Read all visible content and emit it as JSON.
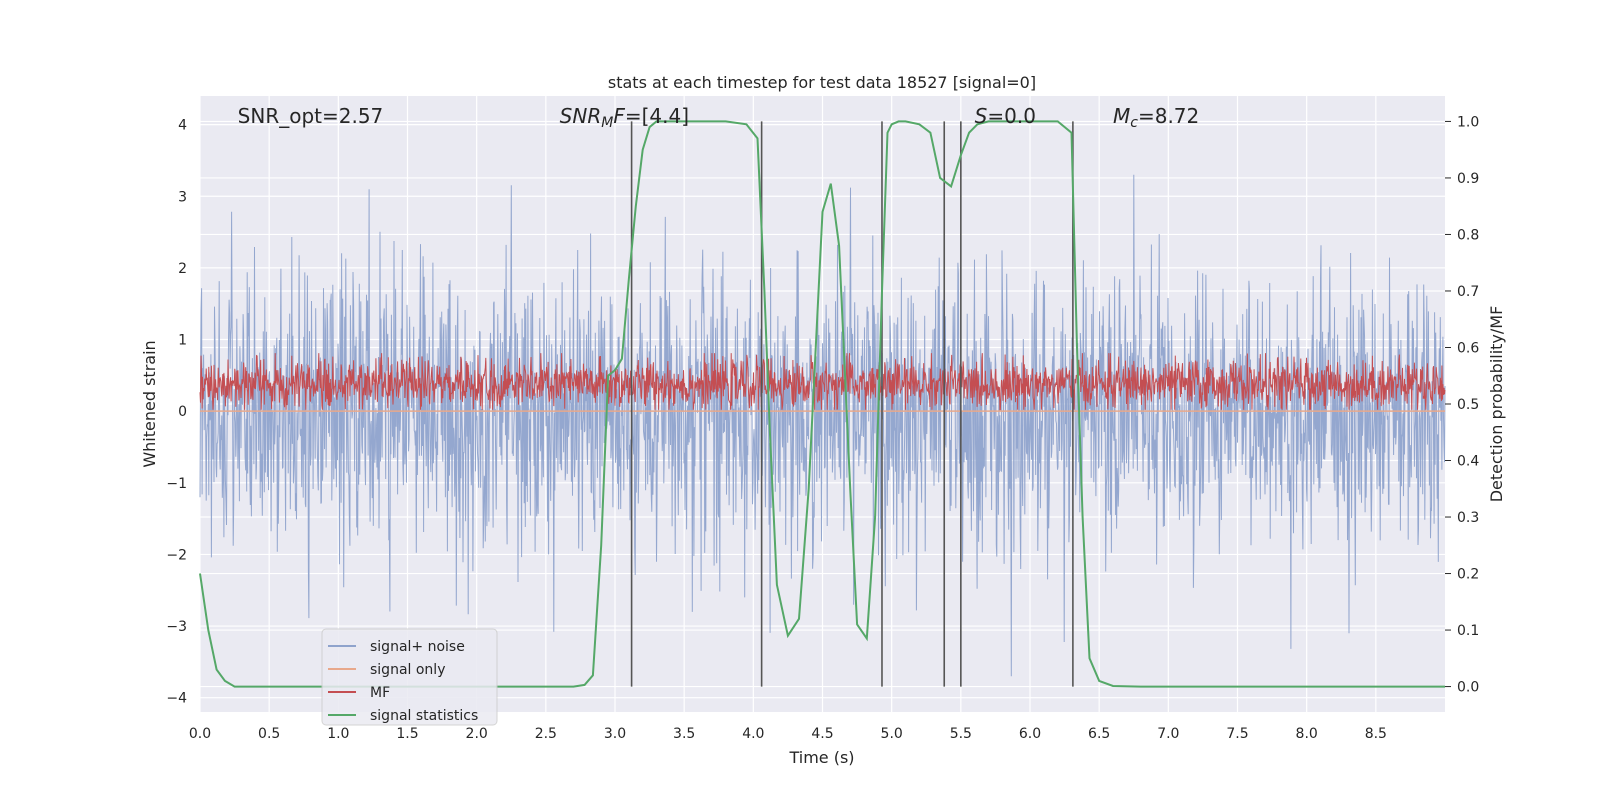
{
  "chart_data": {
    "type": "line",
    "title": "stats at each timestep for test data 18527 [signal=0]",
    "xlabel": "Time (s)",
    "ylabel": "Whitened strain",
    "y2label": "Detection probability/MF",
    "xlim": [
      0,
      9.0
    ],
    "ylim": [
      -4.2,
      4.4
    ],
    "y2lim": [
      -0.045,
      1.045
    ],
    "xticks": [
      "0.0",
      "0.5",
      "1.0",
      "1.5",
      "2.0",
      "2.5",
      "3.0",
      "3.5",
      "4.0",
      "4.5",
      "5.0",
      "5.5",
      "6.0",
      "6.5",
      "7.0",
      "7.5",
      "8.0",
      "8.5"
    ],
    "yticks": [
      "4",
      "3",
      "2",
      "1",
      "0",
      "−1",
      "−2",
      "−3",
      "−4"
    ],
    "y2ticks": [
      "1.0",
      "0.9",
      "0.8",
      "0.7",
      "0.6",
      "0.5",
      "0.4",
      "0.3",
      "0.2",
      "0.1",
      "0.0"
    ],
    "grid": true,
    "legend_position": "lower-left",
    "annotations": [
      {
        "text": "SNR_opt=2.57",
        "x": 0.2
      },
      {
        "text": "SNR_MF=[4.4]",
        "x": 2.6
      },
      {
        "text": "S=0.0",
        "x": 5.6
      },
      {
        "text": "M_c=8.72",
        "x": 6.6
      }
    ],
    "vertical_markers": [
      3.12,
      4.06,
      4.93,
      5.38,
      5.5,
      6.31
    ],
    "series": [
      {
        "name": "signal+ noise",
        "color": "#8fa3cc",
        "axis": "left",
        "description": "whitened noise, roughly Gaussian with std ~1, extremes near ±3.7",
        "amplitude_range": [
          -3.7,
          3.6
        ]
      },
      {
        "name": "signal only",
        "color": "#e8a88b",
        "axis": "left",
        "x": [
          0,
          9.0
        ],
        "values": [
          0,
          0
        ]
      },
      {
        "name": "MF",
        "color": "#c44e52",
        "axis": "right",
        "description": "matched filter output fluctuating between ~0.49 and ~0.59",
        "amplitude_range": [
          0.49,
          0.59
        ]
      },
      {
        "name": "signal statistics",
        "color": "#55a868",
        "axis": "right",
        "x": [
          0.0,
          0.06,
          0.12,
          0.18,
          0.25,
          0.5,
          1.0,
          2.0,
          2.5,
          2.7,
          2.78,
          2.84,
          2.9,
          2.95,
          3.0,
          3.05,
          3.1,
          3.15,
          3.2,
          3.25,
          3.3,
          3.4,
          3.6,
          3.8,
          3.95,
          4.03,
          4.08,
          4.12,
          4.17,
          4.25,
          4.33,
          4.4,
          4.5,
          4.56,
          4.62,
          4.7,
          4.75,
          4.82,
          4.88,
          4.93,
          4.97,
          5.0,
          5.05,
          5.1,
          5.2,
          5.28,
          5.35,
          5.43,
          5.5,
          5.56,
          5.62,
          5.7,
          5.8,
          6.0,
          6.2,
          6.3,
          6.34,
          6.38,
          6.43,
          6.5,
          6.6,
          6.8,
          7.0,
          8.0,
          9.0
        ],
        "values": [
          0.2,
          0.1,
          0.03,
          0.01,
          0.0,
          0.0,
          0.0,
          0.0,
          0.0,
          0.0,
          0.003,
          0.02,
          0.25,
          0.55,
          0.56,
          0.58,
          0.72,
          0.85,
          0.95,
          0.99,
          1.0,
          1.0,
          1.0,
          1.0,
          0.995,
          0.97,
          0.7,
          0.45,
          0.18,
          0.09,
          0.12,
          0.35,
          0.84,
          0.89,
          0.78,
          0.35,
          0.11,
          0.085,
          0.3,
          0.7,
          0.98,
          0.995,
          1.0,
          1.0,
          0.995,
          0.98,
          0.9,
          0.885,
          0.94,
          0.98,
          0.995,
          1.0,
          1.0,
          1.0,
          1.0,
          0.98,
          0.6,
          0.3,
          0.05,
          0.01,
          0.001,
          0.0,
          0.0,
          0.0,
          0.0
        ]
      }
    ]
  }
}
